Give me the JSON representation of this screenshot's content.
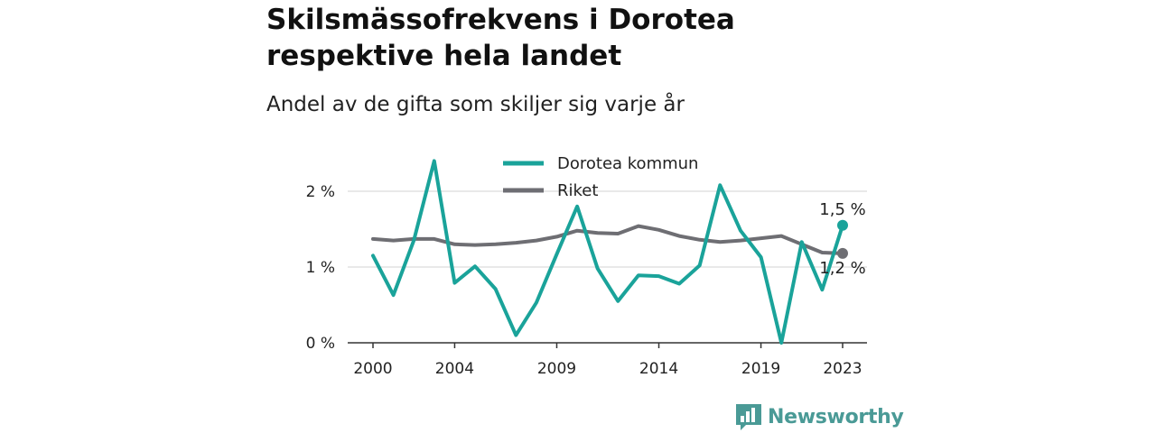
{
  "header": {
    "title_line1": "Skilsmässofrekvens i Dorotea",
    "title_line2": "respektive hela landet",
    "subtitle": "Andel av de gifta som skiljer sig varje år"
  },
  "brand": {
    "name": "Newsworthy",
    "color": "#4a9a96"
  },
  "chart_data": {
    "type": "line",
    "title": "Skilsmässofrekvens i Dorotea respektive hela landet",
    "subtitle": "Andel av de gifta som skiljer sig varje år",
    "xlim": [
      2000,
      2023
    ],
    "ylim": [
      0,
      2.5
    ],
    "x_ticks": [
      {
        "value": 2000,
        "label": "2000"
      },
      {
        "value": 2004,
        "label": "2004"
      },
      {
        "value": 2009,
        "label": "2009"
      },
      {
        "value": 2014,
        "label": "2014"
      },
      {
        "value": 2019,
        "label": "2019"
      },
      {
        "value": 2023,
        "label": "2023"
      }
    ],
    "y_ticks": [
      {
        "value": 0,
        "label": "0 %"
      },
      {
        "value": 1,
        "label": "1 %"
      },
      {
        "value": 2,
        "label": "2 %"
      }
    ],
    "grid": true,
    "legend_position": "top-center",
    "x": [
      2000,
      2001,
      2002,
      2003,
      2004,
      2005,
      2006,
      2007,
      2008,
      2009,
      2010,
      2011,
      2012,
      2013,
      2014,
      2015,
      2016,
      2017,
      2018,
      2019,
      2020,
      2021,
      2022,
      2023
    ],
    "series": [
      {
        "name": "Dorotea kommun",
        "color": "#1aa39a",
        "values": [
          1.15,
          0.63,
          1.35,
          2.4,
          0.79,
          1.01,
          0.71,
          0.1,
          0.53,
          1.17,
          1.8,
          0.98,
          0.55,
          0.89,
          0.88,
          0.78,
          1.02,
          2.08,
          1.48,
          1.13,
          0.0,
          1.33,
          0.7,
          1.55
        ],
        "end_label": "1,5 %"
      },
      {
        "name": "Riket",
        "color": "#6e6e73",
        "values": [
          1.37,
          1.35,
          1.37,
          1.37,
          1.3,
          1.29,
          1.3,
          1.32,
          1.35,
          1.4,
          1.48,
          1.45,
          1.44,
          1.54,
          1.49,
          1.41,
          1.36,
          1.33,
          1.35,
          1.38,
          1.41,
          1.3,
          1.19,
          1.18
        ],
        "end_label": "1,2 %"
      }
    ]
  }
}
